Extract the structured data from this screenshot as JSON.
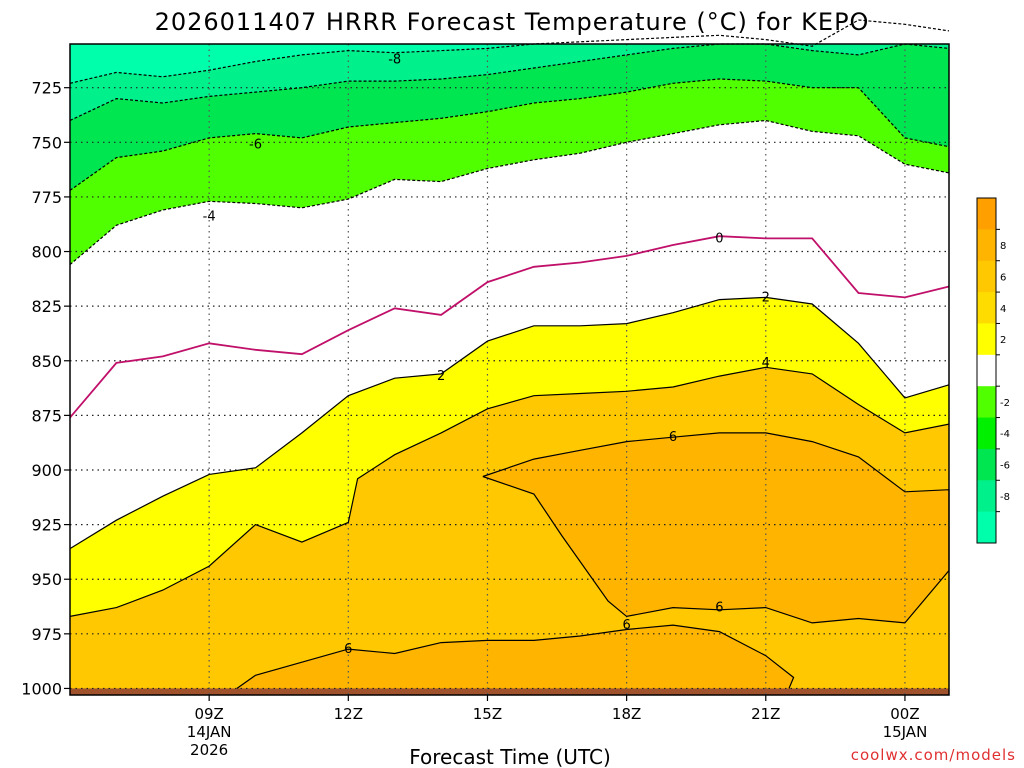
{
  "chart_data": {
    "type": "filled-contour",
    "title": "2026011407 HRRR Forecast Temperature (°C) for KEPO",
    "xlabel": "Forecast Time (UTC)",
    "ylabel": "",
    "credit": "coolwx.com/models",
    "x_range_hours": [
      6.0,
      24.95
    ],
    "y_range_hpa": [
      705,
      1003
    ],
    "y_ticks": [
      725,
      750,
      775,
      800,
      825,
      850,
      875,
      900,
      925,
      950,
      975,
      1000
    ],
    "x_ticks": [
      {
        "hour": 9,
        "line1": "09Z",
        "line2": "14JAN",
        "line3": "2026"
      },
      {
        "hour": 12,
        "line1": "12Z",
        "line2": "",
        "line3": ""
      },
      {
        "hour": 15,
        "line1": "15Z",
        "line2": "",
        "line3": ""
      },
      {
        "hour": 18,
        "line1": "18Z",
        "line2": "",
        "line3": ""
      },
      {
        "hour": 21,
        "line1": "21Z",
        "line2": "",
        "line3": ""
      },
      {
        "hour": 24,
        "line1": "00Z",
        "line2": "15JAN",
        "line3": ""
      }
    ],
    "grid": true,
    "colorbar": {
      "position": "right",
      "bands": [
        {
          "color": "#ffa000",
          "label": ""
        },
        {
          "color": "#ffb400",
          "label": "8"
        },
        {
          "color": "#ffc800",
          "label": "6"
        },
        {
          "color": "#ffdc00",
          "label": "4"
        },
        {
          "color": "#ffff00",
          "label": "2"
        },
        {
          "color": "#ffffff",
          "label": ""
        },
        {
          "color": "#50ff00",
          "label": "-2"
        },
        {
          "color": "#00f000",
          "label": "-4"
        },
        {
          "color": "#00e650",
          "label": "-6"
        },
        {
          "color": "#00f08c",
          "label": "-8"
        },
        {
          "color": "#00ffaa",
          "label": ""
        }
      ]
    },
    "fills": [
      {
        "level": "<=-8",
        "color": "#00ffaa"
      },
      {
        "level": "-8..-6",
        "color": "#00f08c"
      },
      {
        "level": "-6..-4",
        "color": "#00e650"
      },
      {
        "level": "-4..-2",
        "color": "#50ff00"
      },
      {
        "level": "-2..2",
        "color": "#ffffff"
      },
      {
        "level": "2..4",
        "color": "#ffff00"
      },
      {
        "level": "4..6",
        "color": "#ffdc00"
      },
      {
        "level": ">=6",
        "color": "#ffc800"
      },
      {
        "level": "6..8 core",
        "color": "#ffb400"
      }
    ],
    "contours": [
      {
        "level": -8,
        "style": "dashed",
        "color": "#000000",
        "points": [
          [
            6.0,
            723
          ],
          [
            7.0,
            718
          ],
          [
            8.0,
            720
          ],
          [
            9.0,
            717
          ],
          [
            10.0,
            713
          ],
          [
            11.0,
            710
          ],
          [
            12.0,
            708
          ],
          [
            13.0,
            709
          ],
          [
            14.0,
            708
          ],
          [
            15.0,
            707
          ],
          [
            16.0,
            705
          ],
          [
            17.0,
            704
          ],
          [
            18.0,
            703
          ],
          [
            19.0,
            702
          ],
          [
            20.0,
            701
          ],
          [
            21.0,
            703
          ],
          [
            22.0,
            706
          ],
          [
            23.0,
            694
          ],
          [
            24.0,
            696
          ],
          [
            24.95,
            699
          ]
        ]
      },
      {
        "level": -6,
        "style": "dashed",
        "color": "#000000",
        "points": [
          [
            6.0,
            740
          ],
          [
            7.0,
            730
          ],
          [
            8.0,
            732
          ],
          [
            9.0,
            729
          ],
          [
            10.0,
            727
          ],
          [
            11.0,
            725
          ],
          [
            12.0,
            722
          ],
          [
            13.0,
            722
          ],
          [
            14.0,
            721
          ],
          [
            15.0,
            719
          ],
          [
            16.0,
            716
          ],
          [
            17.0,
            713
          ],
          [
            18.0,
            710
          ],
          [
            19.0,
            707
          ],
          [
            20.0,
            705
          ],
          [
            21.0,
            705
          ],
          [
            22.0,
            708
          ],
          [
            23.0,
            710
          ],
          [
            24.0,
            705
          ],
          [
            24.95,
            707
          ]
        ]
      },
      {
        "level": -4,
        "style": "dashed",
        "color": "#000000",
        "points": [
          [
            6.0,
            772
          ],
          [
            7.0,
            757
          ],
          [
            8.0,
            754
          ],
          [
            9.0,
            748
          ],
          [
            10.0,
            746
          ],
          [
            11.0,
            748
          ],
          [
            12.0,
            743
          ],
          [
            13.0,
            741
          ],
          [
            14.0,
            739
          ],
          [
            15.0,
            736
          ],
          [
            16.0,
            732
          ],
          [
            17.0,
            730
          ],
          [
            18.0,
            727
          ],
          [
            19.0,
            723
          ],
          [
            20.0,
            721
          ],
          [
            21.0,
            722
          ],
          [
            22.0,
            725
          ],
          [
            23.0,
            725
          ],
          [
            24.0,
            748
          ],
          [
            24.95,
            752
          ]
        ]
      },
      {
        "level": -2,
        "style": "dashed",
        "color": "#000000",
        "points": [
          [
            6.0,
            806
          ],
          [
            7.0,
            788
          ],
          [
            8.0,
            781
          ],
          [
            9.0,
            777
          ],
          [
            10.0,
            778
          ],
          [
            11.0,
            780
          ],
          [
            12.0,
            776
          ],
          [
            13.0,
            767
          ],
          [
            14.0,
            768
          ],
          [
            15.0,
            762
          ],
          [
            16.0,
            758
          ],
          [
            17.0,
            755
          ],
          [
            18.0,
            750
          ],
          [
            19.0,
            746
          ],
          [
            20.0,
            742
          ],
          [
            21.0,
            740
          ],
          [
            22.0,
            745
          ],
          [
            23.0,
            747
          ],
          [
            24.0,
            760
          ],
          [
            24.95,
            764
          ]
        ]
      },
      {
        "level": 0,
        "style": "solid",
        "color": "#c0106a",
        "points": [
          [
            6.0,
            876
          ],
          [
            7.0,
            851
          ],
          [
            8.0,
            848
          ],
          [
            9.0,
            842
          ],
          [
            10.0,
            845
          ],
          [
            11.0,
            847
          ],
          [
            12.0,
            836
          ],
          [
            13.0,
            826
          ],
          [
            14.0,
            829
          ],
          [
            15.0,
            814
          ],
          [
            16.0,
            807
          ],
          [
            17.0,
            805
          ],
          [
            18.0,
            802
          ],
          [
            19.0,
            797
          ],
          [
            20.0,
            793
          ],
          [
            21.0,
            794
          ],
          [
            22.0,
            794
          ],
          [
            23.0,
            819
          ],
          [
            24.0,
            821
          ],
          [
            24.95,
            816
          ]
        ]
      },
      {
        "level": 2,
        "style": "solid",
        "color": "#000000",
        "points": [
          [
            6.0,
            936
          ],
          [
            7.0,
            923
          ],
          [
            8.0,
            912
          ],
          [
            9.0,
            902
          ],
          [
            10.0,
            899
          ],
          [
            11.0,
            883
          ],
          [
            12.0,
            866
          ],
          [
            13.0,
            858
          ],
          [
            14.0,
            856
          ],
          [
            15.0,
            841
          ],
          [
            16.0,
            834
          ],
          [
            17.0,
            834
          ],
          [
            18.0,
            833
          ],
          [
            19.0,
            828
          ],
          [
            20.0,
            822
          ],
          [
            21.0,
            821
          ],
          [
            22.0,
            824
          ],
          [
            23.0,
            842
          ],
          [
            24.0,
            867
          ],
          [
            24.95,
            861
          ]
        ]
      },
      {
        "level": 4,
        "style": "solid",
        "color": "#000000",
        "points": [
          [
            6.0,
            967
          ],
          [
            7.0,
            963
          ],
          [
            8.0,
            955
          ],
          [
            9.0,
            944
          ],
          [
            10.0,
            925
          ],
          [
            11.0,
            933
          ],
          [
            12.0,
            924
          ],
          [
            12.2,
            904
          ],
          [
            13.0,
            893
          ],
          [
            14.0,
            883
          ],
          [
            15.0,
            872
          ],
          [
            16.0,
            866
          ],
          [
            17.0,
            865
          ],
          [
            18.0,
            864
          ],
          [
            19.0,
            862
          ],
          [
            20.0,
            857
          ],
          [
            21.0,
            853
          ],
          [
            22.0,
            856
          ],
          [
            23.0,
            870
          ],
          [
            24.0,
            883
          ],
          [
            24.95,
            879
          ]
        ]
      },
      {
        "level": 6,
        "style": "solid",
        "color": "#000000",
        "points": [
          [
            14.9,
            903
          ],
          [
            16.0,
            895
          ],
          [
            17.0,
            891
          ],
          [
            18.0,
            887
          ],
          [
            19.0,
            885
          ],
          [
            20.0,
            883
          ],
          [
            21.0,
            883
          ],
          [
            22.0,
            887
          ],
          [
            23.0,
            894
          ],
          [
            24.0,
            910
          ],
          [
            24.95,
            909
          ],
          [
            24.95,
            946
          ],
          [
            24.0,
            970
          ],
          [
            23.0,
            968
          ],
          [
            22.0,
            970
          ],
          [
            21.0,
            963
          ],
          [
            20.0,
            964
          ],
          [
            19.0,
            963
          ],
          [
            18.0,
            967
          ],
          [
            17.6,
            960
          ],
          [
            16.6,
            930
          ],
          [
            16.0,
            911
          ],
          [
            14.9,
            903
          ]
        ]
      },
      {
        "level": 6,
        "style": "solid",
        "color": "#000000",
        "points": [
          [
            9.6,
            1000
          ],
          [
            10.0,
            994
          ],
          [
            11.0,
            988
          ],
          [
            12.0,
            982
          ],
          [
            13.0,
            984
          ],
          [
            14.0,
            979
          ],
          [
            15.0,
            978
          ],
          [
            16.0,
            978
          ],
          [
            17.0,
            976
          ],
          [
            18.0,
            973
          ],
          [
            19.0,
            971
          ],
          [
            20.0,
            974
          ],
          [
            21.0,
            985
          ],
          [
            21.6,
            995
          ],
          [
            21.5,
            1000
          ]
        ]
      }
    ],
    "contour_labels": [
      {
        "text": "-8",
        "hour": 13.0,
        "hpa": 712
      },
      {
        "text": "-6",
        "hour": 10.0,
        "hpa": 751
      },
      {
        "text": "-4",
        "hour": 9.0,
        "hpa": 784
      },
      {
        "text": "0",
        "hour": 20.0,
        "hpa": 794
      },
      {
        "text": "2",
        "hour": 14.0,
        "hpa": 857
      },
      {
        "text": "2",
        "hour": 21.0,
        "hpa": 821
      },
      {
        "text": "4",
        "hour": 21.0,
        "hpa": 851
      },
      {
        "text": "6",
        "hour": 19.0,
        "hpa": 885
      },
      {
        "text": "6",
        "hour": 12.0,
        "hpa": 982
      },
      {
        "text": "6",
        "hour": 18.0,
        "hpa": 971
      },
      {
        "text": "6",
        "hour": 20.0,
        "hpa": 963
      }
    ],
    "ground": {
      "color": "#a0522d",
      "hpa_top": 1000
    }
  }
}
